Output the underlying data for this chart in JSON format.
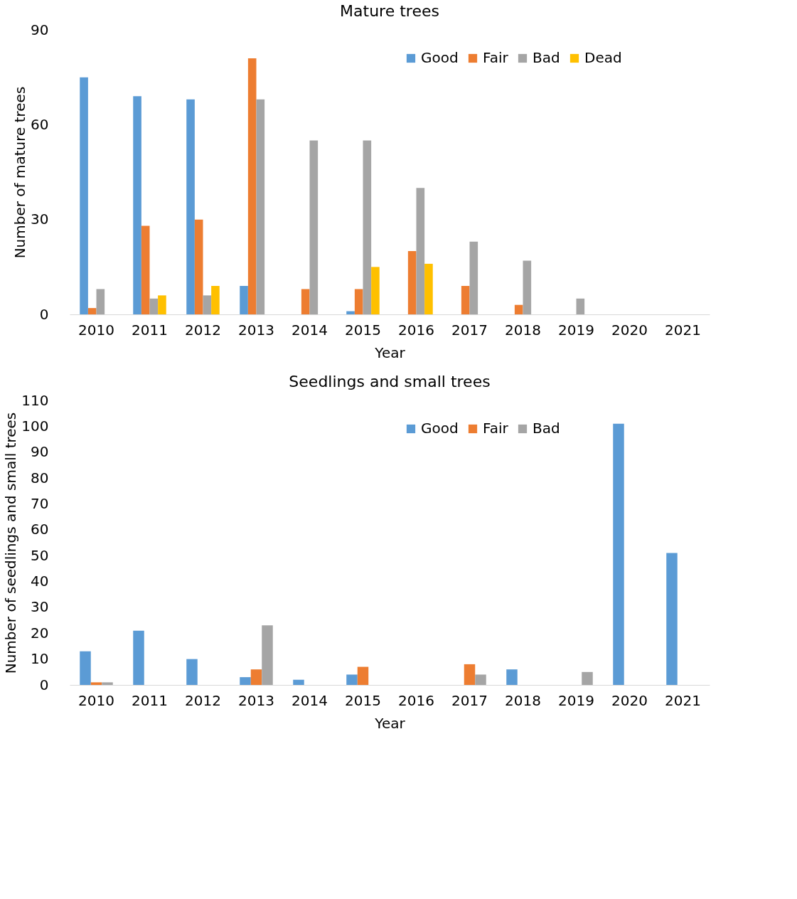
{
  "chart_data": [
    {
      "type": "bar",
      "title": "Mature trees",
      "xlabel": "Year",
      "ylabel": "Number of mature trees",
      "categories": [
        "2010",
        "2011",
        "2012",
        "2013",
        "2014",
        "2015",
        "2016",
        "2017",
        "2018",
        "2019",
        "2020",
        "2021"
      ],
      "series": [
        {
          "name": "Good",
          "color": "#5b9bd5",
          "values": [
            75,
            69,
            68,
            9,
            0,
            1,
            0,
            0,
            0,
            0,
            0,
            0
          ]
        },
        {
          "name": "Fair",
          "color": "#ed7d31",
          "values": [
            2,
            28,
            30,
            81,
            8,
            8,
            20,
            9,
            3,
            0,
            0,
            0
          ]
        },
        {
          "name": "Bad",
          "color": "#a5a5a5",
          "values": [
            8,
            5,
            6,
            68,
            55,
            55,
            40,
            23,
            17,
            5,
            0,
            0
          ]
        },
        {
          "name": "Dead",
          "color": "#ffc000",
          "values": [
            0,
            6,
            9,
            0,
            0,
            15,
            16,
            0,
            0,
            0,
            0,
            0
          ]
        }
      ],
      "ylim": [
        0,
        90
      ],
      "yticks": [
        0,
        30,
        60,
        90
      ],
      "grid": false,
      "legend": "top right"
    },
    {
      "type": "bar",
      "title": "Seedlings and small trees",
      "xlabel": "Year",
      "ylabel": "Number of seedlings and small trees",
      "categories": [
        "2010",
        "2011",
        "2012",
        "2013",
        "2014",
        "2015",
        "2016",
        "2017",
        "2018",
        "2019",
        "2020",
        "2021"
      ],
      "series": [
        {
          "name": "Good",
          "color": "#5b9bd5",
          "values": [
            13,
            21,
            10,
            3,
            2,
            4,
            0,
            0,
            6,
            0,
            101,
            51
          ]
        },
        {
          "name": "Fair",
          "color": "#ed7d31",
          "values": [
            1,
            0,
            0,
            6,
            0,
            7,
            0,
            8,
            0,
            0,
            0,
            0
          ]
        },
        {
          "name": "Bad",
          "color": "#a5a5a5",
          "values": [
            1,
            0,
            0,
            23,
            0,
            0,
            0,
            4,
            0,
            5,
            0,
            0
          ]
        }
      ],
      "ylim": [
        0,
        110
      ],
      "yticks": [
        0,
        10,
        20,
        30,
        40,
        50,
        60,
        70,
        80,
        90,
        100,
        110
      ],
      "grid": false,
      "legend": "top right"
    }
  ]
}
